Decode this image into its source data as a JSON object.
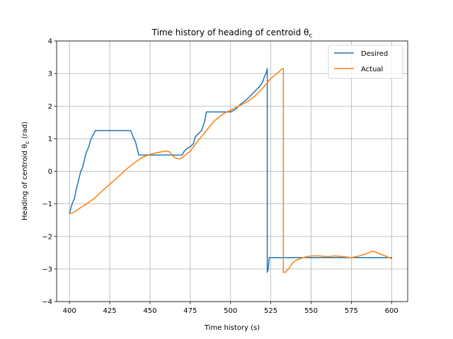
{
  "chart_data": {
    "type": "line",
    "title": "Time history of heading of centroid θ",
    "title_subscript": "c",
    "xlabel": "Time history (s)",
    "ylabel_main": "Heading of centroid θ",
    "ylabel_subscript": "c",
    "ylabel_unit": " (rad)",
    "xlim": [
      392,
      610
    ],
    "ylim": [
      -4,
      4
    ],
    "xticks": [
      400,
      425,
      450,
      475,
      500,
      525,
      550,
      575,
      600
    ],
    "yticks": [
      -4,
      -3,
      -2,
      -1,
      0,
      1,
      2,
      3,
      4
    ],
    "grid": true,
    "legend_position": "top-right",
    "series": [
      {
        "name": "Desired",
        "color": "#1f77b4",
        "x": [
          400,
          401,
          402,
          403,
          404,
          405,
          406,
          407,
          408,
          409,
          410,
          411,
          412,
          413,
          414,
          415,
          416,
          420,
          425,
          430,
          435,
          438,
          440,
          441,
          442,
          443,
          444,
          445,
          450,
          455,
          460,
          465,
          470,
          471,
          473,
          475,
          477,
          478,
          480,
          482,
          484,
          485,
          490,
          495,
          500,
          503,
          506,
          510,
          513,
          516,
          518,
          520,
          521,
          522,
          522.8,
          522.8,
          523.2,
          523.6,
          524,
          525,
          526,
          528,
          530,
          540,
          550,
          560,
          570,
          580,
          590,
          600
        ],
        "y": [
          -1.3,
          -1.1,
          -0.95,
          -0.85,
          -0.6,
          -0.4,
          -0.2,
          0.0,
          0.1,
          0.3,
          0.5,
          0.65,
          0.75,
          0.95,
          1.05,
          1.15,
          1.25,
          1.25,
          1.25,
          1.25,
          1.25,
          1.25,
          1.0,
          0.9,
          0.7,
          0.5,
          0.5,
          0.5,
          0.5,
          0.5,
          0.5,
          0.5,
          0.5,
          0.6,
          0.7,
          0.75,
          0.85,
          1.05,
          1.15,
          1.25,
          1.55,
          1.82,
          1.82,
          1.82,
          1.82,
          1.9,
          2.05,
          2.2,
          2.35,
          2.5,
          2.6,
          2.75,
          2.9,
          3.0,
          3.15,
          -3.1,
          -3.05,
          -2.9,
          -2.65,
          -2.65,
          -2.65,
          -2.65,
          -2.65,
          -2.65,
          -2.65,
          -2.65,
          -2.65,
          -2.65,
          -2.65,
          -2.65
        ]
      },
      {
        "name": "Actual",
        "color": "#ff7f0e",
        "x": [
          400,
          402,
          404,
          406,
          408,
          410,
          415,
          420,
          425,
          430,
          435,
          440,
          445,
          450,
          455,
          460,
          462,
          464,
          466,
          468,
          470,
          472,
          475,
          480,
          485,
          490,
          495,
          500,
          505,
          510,
          515,
          520,
          525,
          530,
          532,
          532.8,
          532.8,
          534,
          536,
          538,
          540,
          545,
          550,
          555,
          560,
          565,
          570,
          575,
          580,
          583,
          586,
          588,
          590,
          595,
          600
        ],
        "y": [
          -1.3,
          -1.28,
          -1.22,
          -1.15,
          -1.08,
          -1.02,
          -0.85,
          -0.62,
          -0.4,
          -0.18,
          0.05,
          0.25,
          0.42,
          0.52,
          0.58,
          0.62,
          0.6,
          0.48,
          0.4,
          0.38,
          0.42,
          0.5,
          0.62,
          0.95,
          1.25,
          1.55,
          1.75,
          1.88,
          2.0,
          2.12,
          2.3,
          2.55,
          2.85,
          3.05,
          3.15,
          3.15,
          -3.1,
          -3.1,
          -3.0,
          -2.85,
          -2.75,
          -2.65,
          -2.6,
          -2.6,
          -2.62,
          -2.6,
          -2.62,
          -2.65,
          -2.6,
          -2.55,
          -2.5,
          -2.45,
          -2.48,
          -2.58,
          -2.68
        ]
      }
    ]
  }
}
